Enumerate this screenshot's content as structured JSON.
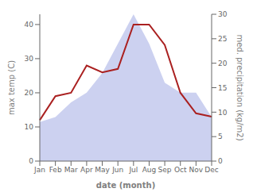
{
  "chart_data": {
    "type": "line",
    "categories": [
      "Jan",
      "Feb",
      "Mar",
      "Apr",
      "May",
      "Jun",
      "Jul",
      "Aug",
      "Sep",
      "Oct",
      "Nov",
      "Dec"
    ],
    "series": [
      {
        "type": "area",
        "color": "#b0b8e8",
        "axis": "y2",
        "values": [
          8,
          9,
          12,
          14,
          18,
          24,
          30,
          24,
          16,
          14,
          14,
          9
        ]
      },
      {
        "type": "line",
        "color": "#aa2020",
        "values": [
          12,
          19,
          20,
          28,
          26,
          27,
          40,
          40,
          34,
          20,
          14,
          13
        ]
      }
    ],
    "xlabel": "date (month)",
    "ylabel": "max temp (C)",
    "y2label": "med. precipitation (kg/m2)",
    "ylim": [
      0,
      43
    ],
    "yticks": [
      0,
      10,
      20,
      30,
      40
    ],
    "y2lim": [
      0,
      30
    ],
    "y2ticks": [
      0,
      5,
      10,
      15,
      20,
      25,
      30
    ],
    "grid": false
  }
}
